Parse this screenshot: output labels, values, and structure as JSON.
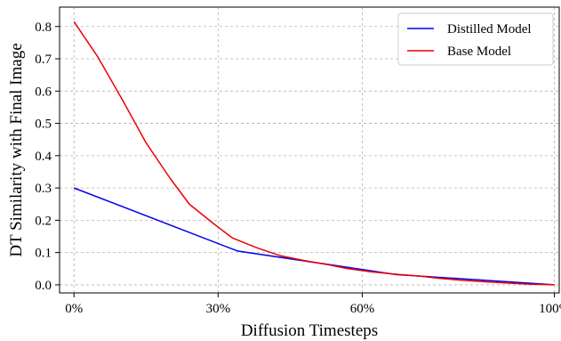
{
  "chart_data": {
    "type": "line",
    "xlabel": "Diffusion Timesteps",
    "ylabel": "DT Similarity with Final Image",
    "xlim": [
      -3,
      101
    ],
    "ylim": [
      -0.025,
      0.86
    ],
    "x_ticks": [
      0,
      30,
      60,
      100
    ],
    "x_tick_labels": [
      "0%",
      "30%",
      "60%",
      "100%"
    ],
    "y_ticks": [
      0.0,
      0.1,
      0.2,
      0.3,
      0.4,
      0.5,
      0.6,
      0.7,
      0.8
    ],
    "y_tick_labels": [
      "0.0",
      "0.1",
      "0.2",
      "0.3",
      "0.4",
      "0.5",
      "0.6",
      "0.7",
      "0.8"
    ],
    "grid": true,
    "legend_position": "top-right",
    "series": [
      {
        "name": "Distilled Model",
        "color": "#0000ee",
        "x": [
          0,
          34,
          67,
          100
        ],
        "values": [
          0.3,
          0.105,
          0.032,
          0.0
        ]
      },
      {
        "name": "Base Model",
        "color": "#ee0000",
        "x": [
          0,
          5,
          10,
          15,
          20,
          24,
          29,
          33,
          38,
          43,
          48,
          53,
          57,
          62,
          67,
          72,
          76,
          81,
          86,
          91,
          95,
          100
        ],
        "values": [
          0.815,
          0.705,
          0.575,
          0.44,
          0.33,
          0.25,
          0.19,
          0.145,
          0.115,
          0.09,
          0.075,
          0.062,
          0.05,
          0.04,
          0.033,
          0.027,
          0.02,
          0.014,
          0.009,
          0.005,
          0.002,
          0.0
        ]
      }
    ]
  }
}
